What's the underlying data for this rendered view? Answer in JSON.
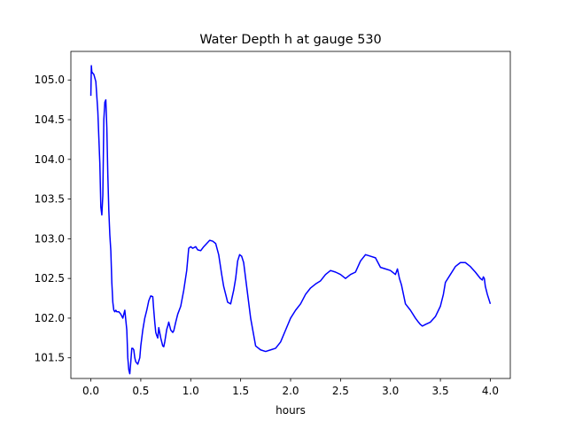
{
  "chart_data": {
    "type": "line",
    "title": "Water Depth h at gauge 530",
    "xlabel": "hours",
    "ylabel": "",
    "xlim": [
      -0.2,
      4.2
    ],
    "ylim": [
      101.24,
      105.36
    ],
    "xticks": [
      0.0,
      0.5,
      1.0,
      1.5,
      2.0,
      2.5,
      3.0,
      3.5,
      4.0
    ],
    "xtick_labels": [
      "0.0",
      "0.5",
      "1.0",
      "1.5",
      "2.0",
      "2.5",
      "3.0",
      "3.5",
      "4.0"
    ],
    "yticks": [
      101.5,
      102.0,
      102.5,
      103.0,
      103.5,
      104.0,
      104.5,
      105.0
    ],
    "ytick_labels": [
      "101.5",
      "102.0",
      "102.5",
      "103.0",
      "103.5",
      "104.0",
      "104.5",
      "105.0"
    ],
    "grid": false,
    "series": [
      {
        "color": "#0000ff",
        "x": [
          0.0,
          0.005,
          0.01,
          0.03,
          0.05,
          0.07,
          0.09,
          0.1,
          0.11,
          0.12,
          0.13,
          0.14,
          0.15,
          0.16,
          0.17,
          0.18,
          0.19,
          0.2,
          0.21,
          0.22,
          0.23,
          0.24,
          0.25,
          0.26,
          0.28,
          0.3,
          0.32,
          0.34,
          0.36,
          0.37,
          0.38,
          0.39,
          0.4,
          0.41,
          0.42,
          0.43,
          0.44,
          0.45,
          0.47,
          0.49,
          0.5,
          0.52,
          0.54,
          0.56,
          0.58,
          0.6,
          0.62,
          0.63,
          0.64,
          0.65,
          0.66,
          0.67,
          0.68,
          0.7,
          0.71,
          0.72,
          0.73,
          0.74,
          0.75,
          0.76,
          0.77,
          0.78,
          0.8,
          0.82,
          0.83,
          0.85,
          0.87,
          0.9,
          0.93,
          0.96,
          0.98,
          1.0,
          1.02,
          1.05,
          1.07,
          1.1,
          1.13,
          1.16,
          1.19,
          1.22,
          1.25,
          1.28,
          1.31,
          1.33,
          1.35,
          1.37,
          1.4,
          1.43,
          1.45,
          1.47,
          1.49,
          1.51,
          1.53,
          1.56,
          1.6,
          1.65,
          1.7,
          1.75,
          1.8,
          1.85,
          1.9,
          1.95,
          2.0,
          2.05,
          2.1,
          2.15,
          2.2,
          2.25,
          2.3,
          2.35,
          2.4,
          2.45,
          2.5,
          2.55,
          2.6,
          2.65,
          2.7,
          2.75,
          2.8,
          2.85,
          2.9,
          2.95,
          3.0,
          3.05,
          3.07,
          3.09,
          3.11,
          3.13,
          3.15,
          3.2,
          3.25,
          3.28,
          3.3,
          3.32,
          3.35,
          3.4,
          3.45,
          3.5,
          3.53,
          3.55,
          3.6,
          3.65,
          3.7,
          3.75,
          3.8,
          3.85,
          3.9,
          3.92,
          3.93,
          3.94,
          3.95,
          3.97,
          4.0
        ],
        "y": [
          104.8,
          105.18,
          105.1,
          105.07,
          104.98,
          104.6,
          103.95,
          103.4,
          103.3,
          103.55,
          104.5,
          104.72,
          104.75,
          104.4,
          103.8,
          103.35,
          103.05,
          102.85,
          102.45,
          102.2,
          102.1,
          102.08,
          102.1,
          102.08,
          102.08,
          102.05,
          102.0,
          102.1,
          101.85,
          101.5,
          101.35,
          101.3,
          101.45,
          101.62,
          101.62,
          101.6,
          101.5,
          101.45,
          101.42,
          101.5,
          101.65,
          101.85,
          102.0,
          102.1,
          102.22,
          102.28,
          102.27,
          102.1,
          101.95,
          101.82,
          101.78,
          101.75,
          101.88,
          101.75,
          101.7,
          101.65,
          101.64,
          101.7,
          101.78,
          101.86,
          101.9,
          101.95,
          101.85,
          101.82,
          101.84,
          101.95,
          102.05,
          102.15,
          102.35,
          102.6,
          102.88,
          102.9,
          102.88,
          102.9,
          102.86,
          102.85,
          102.9,
          102.94,
          102.98,
          102.97,
          102.94,
          102.8,
          102.55,
          102.4,
          102.3,
          102.2,
          102.18,
          102.35,
          102.5,
          102.72,
          102.8,
          102.78,
          102.7,
          102.4,
          102.0,
          101.65,
          101.6,
          101.58,
          101.6,
          101.62,
          101.7,
          101.85,
          102.0,
          102.1,
          102.18,
          102.3,
          102.38,
          102.43,
          102.47,
          102.55,
          102.6,
          102.58,
          102.55,
          102.5,
          102.55,
          102.58,
          102.72,
          102.8,
          102.78,
          102.76,
          102.64,
          102.62,
          102.6,
          102.55,
          102.62,
          102.5,
          102.42,
          102.3,
          102.18,
          102.1,
          102.0,
          101.95,
          101.92,
          101.9,
          101.92,
          101.95,
          102.02,
          102.15,
          102.3,
          102.45,
          102.55,
          102.65,
          102.7,
          102.7,
          102.65,
          102.58,
          102.5,
          102.48,
          102.52,
          102.5,
          102.4,
          102.3,
          102.18
        ]
      }
    ]
  }
}
